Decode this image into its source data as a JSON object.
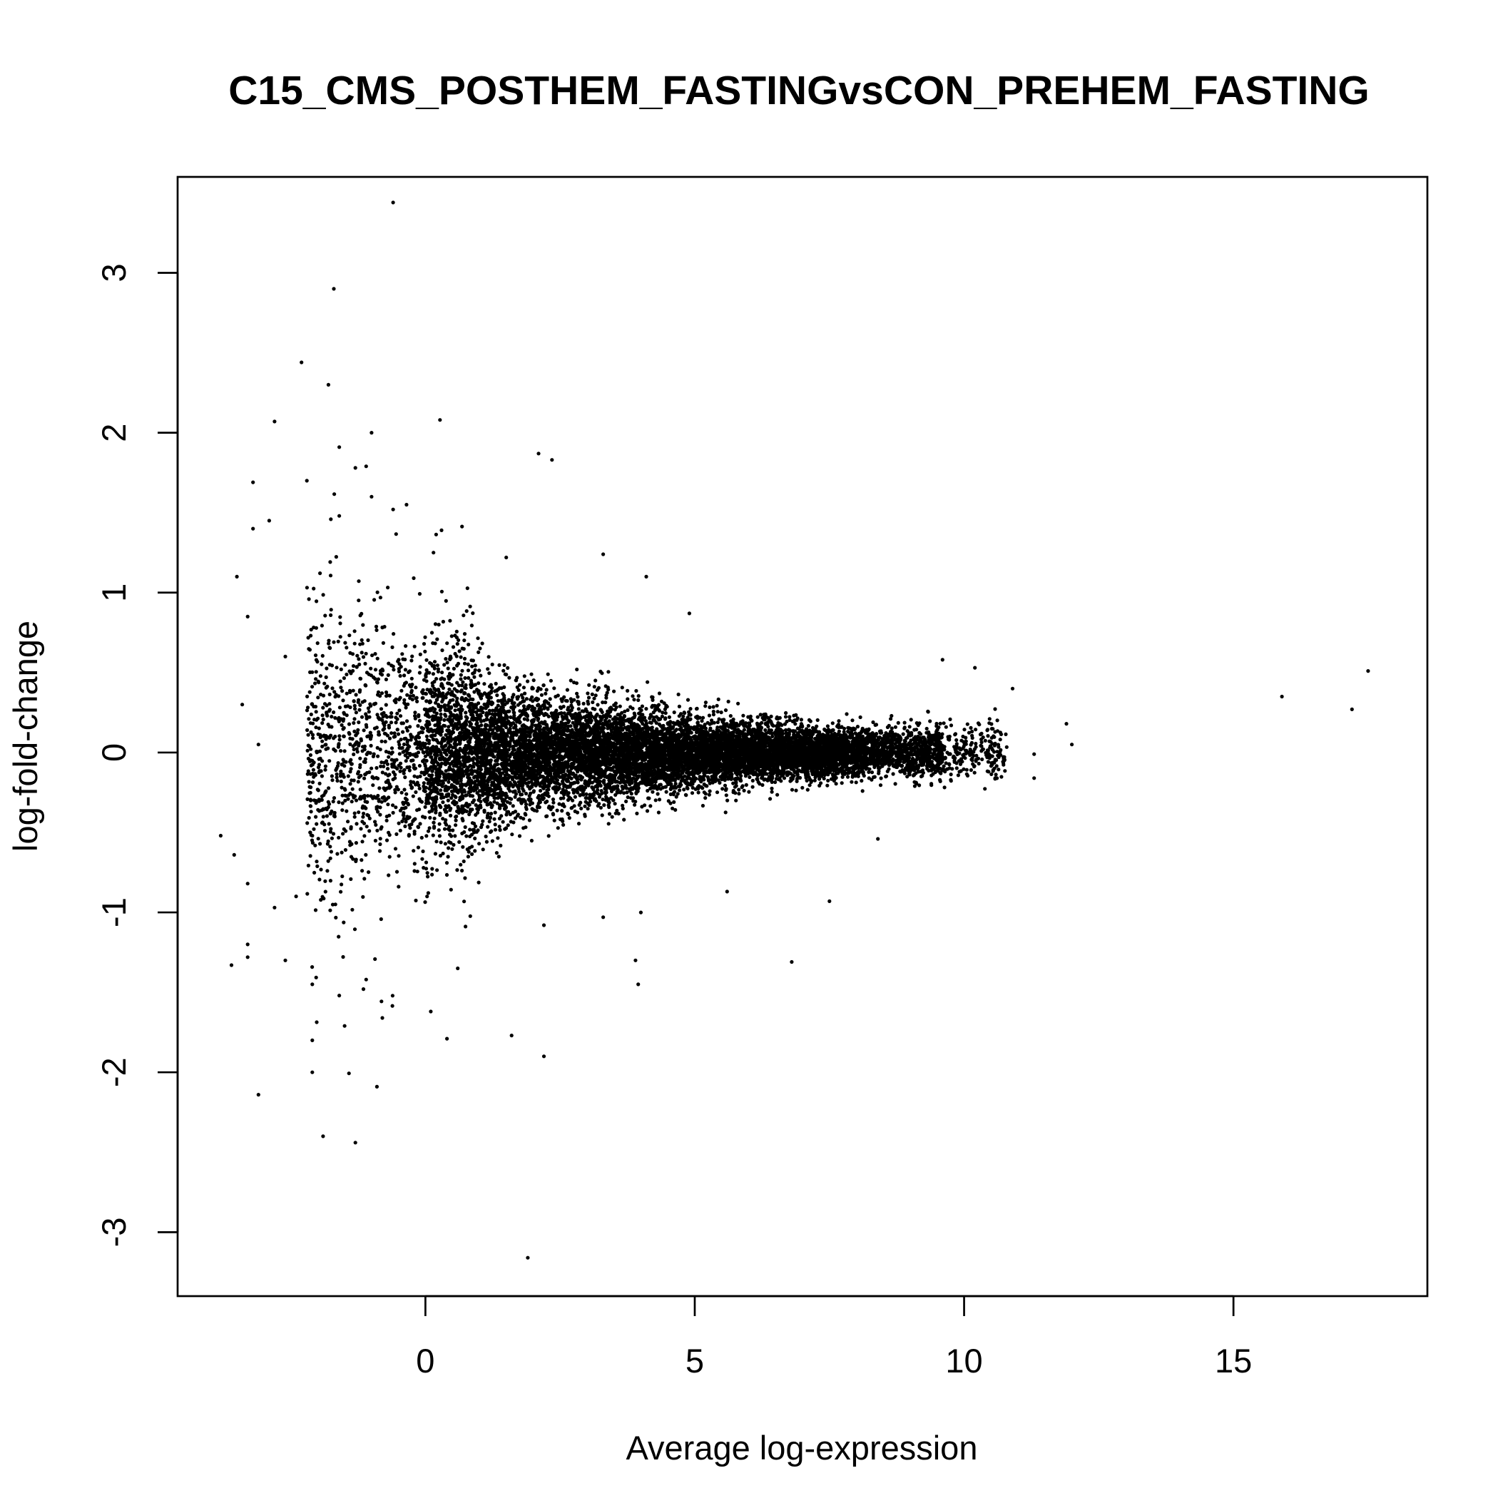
{
  "chart_data": {
    "type": "scatter",
    "title": "C15_CMS_POSTHEM_FASTINGvsCON_PREHEM_FASTING",
    "xlabel": "Average log-expression",
    "ylabel": "log-fold-change",
    "xlim": [
      -4.6,
      18.6
    ],
    "ylim": [
      -3.4,
      3.6
    ],
    "xticks": [
      0,
      5,
      10,
      15
    ],
    "yticks": [
      -3,
      -2,
      -1,
      0,
      1,
      2,
      3
    ],
    "xtick_labels": [
      "0",
      "5",
      "10",
      "15"
    ],
    "ytick_labels": [
      "-3",
      "-2",
      "-1",
      "0",
      "1",
      "2",
      "3"
    ],
    "grid": false,
    "legend": "none",
    "point_color": "#000000",
    "outliers": [
      {
        "x": -0.6,
        "y": 3.44
      },
      {
        "x": -1.7,
        "y": 2.9
      },
      {
        "x": -2.3,
        "y": 2.44
      },
      {
        "x": -1.8,
        "y": 2.3
      },
      {
        "x": 0.27,
        "y": 2.08
      },
      {
        "x": -2.8,
        "y": 2.07
      },
      {
        "x": -1.0,
        "y": 2.0
      },
      {
        "x": -1.6,
        "y": 1.91
      },
      {
        "x": 2.1,
        "y": 1.87
      },
      {
        "x": 2.35,
        "y": 1.83
      },
      {
        "x": -1.3,
        "y": 1.78
      },
      {
        "x": -1.1,
        "y": 1.79
      },
      {
        "x": -2.2,
        "y": 1.7
      },
      {
        "x": -3.2,
        "y": 1.69
      },
      {
        "x": -1.0,
        "y": 1.6
      },
      {
        "x": -0.35,
        "y": 1.55
      },
      {
        "x": -0.6,
        "y": 1.52
      },
      {
        "x": -1.6,
        "y": 1.48
      },
      {
        "x": -2.9,
        "y": 1.45
      },
      {
        "x": -3.2,
        "y": 1.4
      },
      {
        "x": 3.3,
        "y": 1.24
      },
      {
        "x": 4.1,
        "y": 1.1
      },
      {
        "x": -3.5,
        "y": 1.1
      },
      {
        "x": -3.3,
        "y": 0.85
      },
      {
        "x": 4.9,
        "y": 0.87
      },
      {
        "x": -2.6,
        "y": 0.6
      },
      {
        "x": -3.4,
        "y": 0.3
      },
      {
        "x": -3.1,
        "y": 0.05
      },
      {
        "x": -3.8,
        "y": -0.52
      },
      {
        "x": -3.55,
        "y": -0.64
      },
      {
        "x": -3.3,
        "y": -0.82
      },
      {
        "x": -2.8,
        "y": -0.97
      },
      {
        "x": -2.4,
        "y": -0.9
      },
      {
        "x": 3.3,
        "y": -1.03
      },
      {
        "x": 2.2,
        "y": -1.08
      },
      {
        "x": 4.0,
        "y": -1.0
      },
      {
        "x": 7.5,
        "y": -0.93
      },
      {
        "x": 5.6,
        "y": -0.87
      },
      {
        "x": -3.6,
        "y": -1.33
      },
      {
        "x": -3.3,
        "y": -1.28
      },
      {
        "x": -3.3,
        "y": -1.2
      },
      {
        "x": -2.6,
        "y": -1.3
      },
      {
        "x": 6.8,
        "y": -1.31
      },
      {
        "x": 3.9,
        "y": -1.3
      },
      {
        "x": 0.6,
        "y": -1.35
      },
      {
        "x": 3.95,
        "y": -1.45
      },
      {
        "x": -1.1,
        "y": -1.42
      },
      {
        "x": -1.15,
        "y": -1.48
      },
      {
        "x": -1.6,
        "y": -1.52
      },
      {
        "x": -2.1,
        "y": -1.45
      },
      {
        "x": -0.8,
        "y": -1.66
      },
      {
        "x": 0.1,
        "y": -1.62
      },
      {
        "x": -1.5,
        "y": -1.71
      },
      {
        "x": 0.4,
        "y": -1.79
      },
      {
        "x": 1.6,
        "y": -1.77
      },
      {
        "x": -2.1,
        "y": -1.8
      },
      {
        "x": 2.2,
        "y": -1.9
      },
      {
        "x": -2.1,
        "y": -2.0
      },
      {
        "x": -0.9,
        "y": -2.09
      },
      {
        "x": -3.1,
        "y": -2.14
      },
      {
        "x": -1.9,
        "y": -2.4
      },
      {
        "x": -1.3,
        "y": -2.44
      },
      {
        "x": 1.9,
        "y": -3.16
      },
      {
        "x": 0.3,
        "y": 1.39
      },
      {
        "x": 0.15,
        "y": 1.25
      },
      {
        "x": 1.5,
        "y": 1.22
      },
      {
        "x": 10.2,
        "y": 0.53
      },
      {
        "x": 10.9,
        "y": 0.4
      },
      {
        "x": 9.6,
        "y": 0.58
      },
      {
        "x": 11.9,
        "y": 0.18
      },
      {
        "x": 12.0,
        "y": 0.05
      },
      {
        "x": 11.3,
        "y": -0.01
      },
      {
        "x": 11.3,
        "y": -0.16
      },
      {
        "x": 8.4,
        "y": -0.54
      },
      {
        "x": 15.9,
        "y": 0.35
      },
      {
        "x": 17.2,
        "y": 0.27
      },
      {
        "x": 17.5,
        "y": 0.51
      }
    ],
    "bulk_cloud": {
      "approx_points": 12000,
      "x_range": [
        -2.2,
        11.0
      ],
      "y_center": 0.0,
      "spread_at_x": [
        {
          "x": -1.5,
          "sd": 0.42
        },
        {
          "x": 0.0,
          "sd": 0.3
        },
        {
          "x": 2.0,
          "sd": 0.18
        },
        {
          "x": 5.0,
          "sd": 0.11
        },
        {
          "x": 8.0,
          "sd": 0.07
        },
        {
          "x": 10.5,
          "sd": 0.09
        }
      ]
    }
  }
}
